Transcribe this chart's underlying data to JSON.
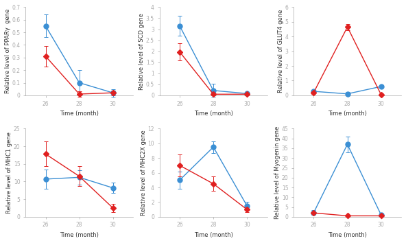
{
  "subplots": [
    {
      "ylabel": "Relative level of PPARγ  gene",
      "xlabel": "Time (month)",
      "ylim": [
        0,
        0.7
      ],
      "yticks": [
        0,
        0.1,
        0.2,
        0.3,
        0.4,
        0.5,
        0.6,
        0.7
      ],
      "ytick_labels": [
        "0",
        "0.1",
        "0.2",
        "0.3",
        "0.4",
        "0.5",
        "0.6",
        "0.7"
      ],
      "blue_y": [
        0.55,
        0.1,
        0.02
      ],
      "blue_yerr": [
        0.09,
        0.1,
        0.03
      ],
      "red_y": [
        0.31,
        0.01,
        0.02
      ],
      "red_yerr": [
        0.08,
        0.02,
        0.02
      ]
    },
    {
      "ylabel": "Relative level of SCD gene",
      "xlabel": "Time (month)",
      "ylim": [
        0,
        4
      ],
      "yticks": [
        0,
        0.5,
        1.0,
        1.5,
        2.0,
        2.5,
        3.0,
        3.5,
        4.0
      ],
      "ytick_labels": [
        "0",
        "0.5",
        "1",
        "1.5",
        "2",
        "2.5",
        "3",
        "3.5",
        "4"
      ],
      "blue_y": [
        3.15,
        0.22,
        0.08
      ],
      "blue_yerr": [
        0.45,
        0.3,
        0.05
      ],
      "red_y": [
        1.97,
        0.05,
        0.05
      ],
      "red_yerr": [
        0.4,
        0.06,
        0.05
      ]
    },
    {
      "ylabel": "Relative level of GLUT4 gene",
      "xlabel": "Time (month)",
      "ylim": [
        0,
        6
      ],
      "yticks": [
        0,
        1,
        2,
        3,
        4,
        5,
        6
      ],
      "ytick_labels": [
        "0",
        "1",
        "2",
        "3",
        "4",
        "5",
        "6"
      ],
      "blue_y": [
        0.27,
        0.1,
        0.6
      ],
      "blue_yerr": [
        0.1,
        0.12,
        0.1
      ],
      "red_y": [
        0.2,
        4.65,
        0.05
      ],
      "red_yerr": [
        0.1,
        0.2,
        0.07
      ]
    },
    {
      "ylabel": "Relative level of MHC1 gene",
      "xlabel": "Time (month)",
      "ylim": [
        0,
        25
      ],
      "yticks": [
        0,
        5,
        10,
        15,
        20,
        25
      ],
      "ytick_labels": [
        "0",
        "5",
        "10",
        "15",
        "20",
        "25"
      ],
      "blue_y": [
        10.7,
        11.2,
        8.2
      ],
      "blue_yerr": [
        2.8,
        2.0,
        1.5
      ],
      "red_y": [
        17.8,
        11.5,
        2.5
      ],
      "red_yerr": [
        3.5,
        2.8,
        1.2
      ]
    },
    {
      "ylabel": "Relative level of MHC2X gene",
      "xlabel": "Time (month)",
      "ylim": [
        0,
        12
      ],
      "yticks": [
        0,
        2,
        4,
        6,
        8,
        10,
        12
      ],
      "ytick_labels": [
        "0",
        "2",
        "4",
        "6",
        "8",
        "10",
        "12"
      ],
      "blue_y": [
        5.0,
        9.5,
        1.5
      ],
      "blue_yerr": [
        1.2,
        0.8,
        0.5
      ],
      "red_y": [
        7.0,
        4.5,
        1.0
      ],
      "red_yerr": [
        1.5,
        1.0,
        0.4
      ]
    },
    {
      "ylabel": "Relative level of Myogenin gene",
      "xlabel": "Time (month)",
      "ylim": [
        0,
        45
      ],
      "yticks": [
        0,
        5,
        10,
        15,
        20,
        25,
        30,
        35,
        40,
        45
      ],
      "ytick_labels": [
        "0",
        "5",
        "10",
        "15",
        "20",
        "25",
        "30",
        "35",
        "40",
        "45"
      ],
      "blue_y": [
        2.2,
        37.0,
        1.0
      ],
      "blue_yerr": [
        1.2,
        4.0,
        0.8
      ],
      "red_y": [
        2.0,
        0.5,
        0.5
      ],
      "red_yerr": [
        0.8,
        0.4,
        0.3
      ]
    }
  ],
  "x": [
    26,
    28,
    30
  ],
  "blue_color": "#3b8fd4",
  "red_color": "#e02020",
  "marker_blue": "o",
  "marker_red": "D",
  "linewidth": 1.0,
  "markersize_blue": 5,
  "markersize_red": 4,
  "fontsize_label": 6.0,
  "fontsize_tick": 5.5,
  "spine_color": "#aaaaaa"
}
